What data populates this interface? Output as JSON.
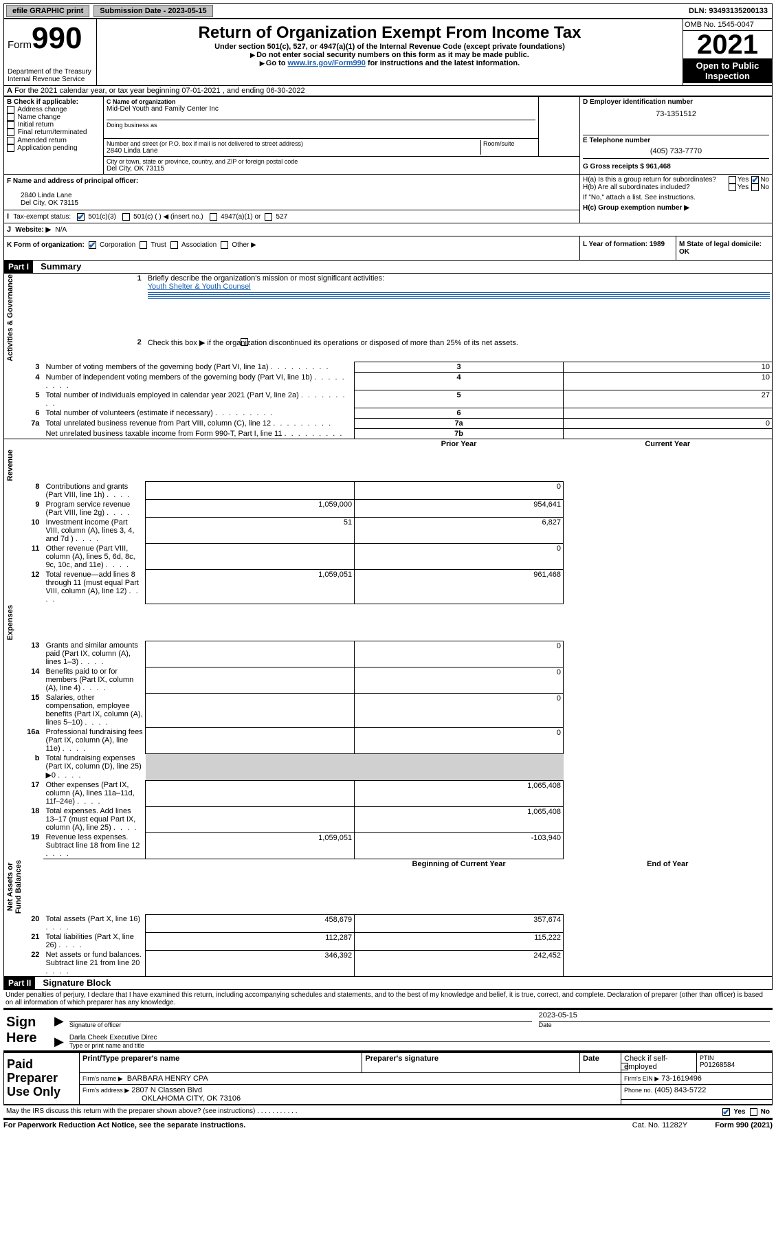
{
  "topbar": {
    "efile": "efile GRAPHIC print",
    "submission_label": "Submission Date - 2023-05-15",
    "dln_label": "DLN: 93493135200133"
  },
  "header": {
    "form_prefix": "Form",
    "form_number": "990",
    "dept": "Department of the Treasury\nInternal Revenue Service",
    "title": "Return of Organization Exempt From Income Tax",
    "subtitle": "Under section 501(c), 527, or 4947(a)(1) of the Internal Revenue Code (except private foundations)",
    "note1": "Do not enter social security numbers on this form as it may be made public.",
    "note2_pre": "Go to ",
    "note2_link": "www.irs.gov/Form990",
    "note2_post": " for instructions and the latest information.",
    "omb": "OMB No. 1545-0047",
    "year": "2021",
    "open": "Open to Public Inspection"
  },
  "sectionA": {
    "A_text": "For the 2021 calendar year, or tax year beginning 07-01-2021   , and ending 06-30-2022",
    "B_label": "B Check if applicable:",
    "B_opts": [
      "Address change",
      "Name change",
      "Initial return",
      "Final return/terminated",
      "Amended return",
      "Application pending"
    ],
    "C_lbl": "C Name of organization",
    "C_name": "Mid-Del Youth and Family Center Inc",
    "C_dba_lbl": "Doing business as",
    "C_addr_lbl": "Number and street (or P.O. box if mail is not delivered to street address)",
    "C_room_lbl": "Room/suite",
    "C_addr": "2840 Linda Lane",
    "C_city_lbl": "City or town, state or province, country, and ZIP or foreign postal code",
    "C_city": "Del City, OK  73115",
    "D_lbl": "D Employer identification number",
    "D_val": "73-1351512",
    "E_lbl": "E Telephone number",
    "E_val": "(405) 733-7770",
    "G_lbl": "G Gross receipts $ 961,468",
    "F_lbl": "F  Name and address of principal officer:",
    "F_addr1": "2840 Linda Lane",
    "F_addr2": "Del City, OK  73115",
    "Ha": "H(a)  Is this a group return for subordinates?",
    "Hb": "H(b)  Are all subordinates included?",
    "Hb_note": "If \"No,\" attach a list. See instructions.",
    "Hc": "H(c)  Group exemption number ▶",
    "yes": "Yes",
    "no": "No",
    "I_lbl": "Tax-exempt status:",
    "I_1": "501(c)(3)",
    "I_2": "501(c) (  ) ◀ (insert no.)",
    "I_3": "4947(a)(1) or",
    "I_4": "527",
    "J_lbl": "Website: ▶",
    "J_val": "N/A",
    "K_lbl": "K Form of organization:",
    "K_opts": [
      "Corporation",
      "Trust",
      "Association",
      "Other ▶"
    ],
    "L_lbl": "L Year of formation: 1989",
    "M_lbl": "M State of legal domicile: OK"
  },
  "part1": {
    "hdr": "Part I",
    "title": "Summary",
    "line1_lbl": "Briefly describe the organization's mission or most significant activities:",
    "line1_val": "Youth Shelter & Youth Counsel",
    "line2": "Check this box ▶       if the organization discontinued its operations or disposed of more than 25% of its net assets.",
    "rows_gov": [
      {
        "n": "3",
        "t": "Number of voting members of the governing body (Part VI, line 1a)",
        "box": "3",
        "v": "10"
      },
      {
        "n": "4",
        "t": "Number of independent voting members of the governing body (Part VI, line 1b)",
        "box": "4",
        "v": "10"
      },
      {
        "n": "5",
        "t": "Total number of individuals employed in calendar year 2021 (Part V, line 2a)",
        "box": "5",
        "v": "27"
      },
      {
        "n": "6",
        "t": "Total number of volunteers (estimate if necessary)",
        "box": "6",
        "v": ""
      },
      {
        "n": "7a",
        "t": "Total unrelated business revenue from Part VIII, column (C), line 12",
        "box": "7a",
        "v": "0"
      },
      {
        "n": "",
        "t": "Net unrelated business taxable income from Form 990-T, Part I, line 11",
        "box": "7b",
        "v": ""
      }
    ],
    "col_prior": "Prior Year",
    "col_curr": "Current Year",
    "rows_rev": [
      {
        "n": "8",
        "t": "Contributions and grants (Part VIII, line 1h)",
        "p": "",
        "c": "0"
      },
      {
        "n": "9",
        "t": "Program service revenue (Part VIII, line 2g)",
        "p": "1,059,000",
        "c": "954,641"
      },
      {
        "n": "10",
        "t": "Investment income (Part VIII, column (A), lines 3, 4, and 7d )",
        "p": "51",
        "c": "6,827"
      },
      {
        "n": "11",
        "t": "Other revenue (Part VIII, column (A), lines 5, 6d, 8c, 9c, 10c, and 11e)",
        "p": "",
        "c": "0"
      },
      {
        "n": "12",
        "t": "Total revenue—add lines 8 through 11 (must equal Part VIII, column (A), line 12)",
        "p": "1,059,051",
        "c": "961,468"
      }
    ],
    "rows_exp": [
      {
        "n": "13",
        "t": "Grants and similar amounts paid (Part IX, column (A), lines 1–3)",
        "p": "",
        "c": "0"
      },
      {
        "n": "14",
        "t": "Benefits paid to or for members (Part IX, column (A), line 4)",
        "p": "",
        "c": "0"
      },
      {
        "n": "15",
        "t": "Salaries, other compensation, employee benefits (Part IX, column (A), lines 5–10)",
        "p": "",
        "c": "0"
      },
      {
        "n": "16a",
        "t": "Professional fundraising fees (Part IX, column (A), line 11e)",
        "p": "",
        "c": "0"
      },
      {
        "n": "b",
        "t": "Total fundraising expenses (Part IX, column (D), line 25) ▶0",
        "p": "grey",
        "c": "grey"
      },
      {
        "n": "17",
        "t": "Other expenses (Part IX, column (A), lines 11a–11d, 11f–24e)",
        "p": "",
        "c": "1,065,408"
      },
      {
        "n": "18",
        "t": "Total expenses. Add lines 13–17 (must equal Part IX, column (A), line 25)",
        "p": "",
        "c": "1,065,408"
      },
      {
        "n": "19",
        "t": "Revenue less expenses. Subtract line 18 from line 12",
        "p": "1,059,051",
        "c": "-103,940"
      }
    ],
    "col_boy": "Beginning of Current Year",
    "col_eoy": "End of Year",
    "rows_net": [
      {
        "n": "20",
        "t": "Total assets (Part X, line 16)",
        "p": "458,679",
        "c": "357,674"
      },
      {
        "n": "21",
        "t": "Total liabilities (Part X, line 26)",
        "p": "112,287",
        "c": "115,222"
      },
      {
        "n": "22",
        "t": "Net assets or fund balances. Subtract line 21 from line 20",
        "p": "346,392",
        "c": "242,452"
      }
    ],
    "vlabels": [
      "Activities & Governance",
      "Revenue",
      "Expenses",
      "Net Assets or\nFund Balances"
    ]
  },
  "part2": {
    "hdr": "Part II",
    "title": "Signature Block",
    "decl": "Under penalties of perjury, I declare that I have examined this return, including accompanying schedules and statements, and to the best of my knowledge and belief, it is true, correct, and complete. Declaration of preparer (other than officer) is based on all information of which preparer has any knowledge.",
    "sign_here": "Sign Here",
    "sig_officer": "Signature of officer",
    "sig_date_val": "2023-05-15",
    "sig_date": "Date",
    "sig_name": "Darla Cheek  Executive Direc",
    "sig_name_lbl": "Type or print name and title",
    "paid": "Paid Preparer Use Only",
    "p_name_lbl": "Print/Type preparer's name",
    "p_sig_lbl": "Preparer's signature",
    "p_date_lbl": "Date",
    "p_check": "Check        if self-employed",
    "p_ptin_lbl": "PTIN",
    "p_ptin": "P01268584",
    "p_firm_lbl": "Firm's name    ▶",
    "p_firm": "BARBARA HENRY CPA",
    "p_ein_lbl": "Firm's EIN ▶",
    "p_ein": "73-1619496",
    "p_addr_lbl": "Firm's address ▶",
    "p_addr1": "2807 N Classen Blvd",
    "p_addr2": "OKLAHOMA CITY, OK  73106",
    "p_phone_lbl": "Phone no.",
    "p_phone": "(405) 843-5722",
    "discuss": "May the IRS discuss this return with the preparer shown above? (see instructions)"
  },
  "footer": {
    "left": "For Paperwork Reduction Act Notice, see the separate instructions.",
    "mid": "Cat. No. 11282Y",
    "right": "Form 990 (2021)"
  }
}
